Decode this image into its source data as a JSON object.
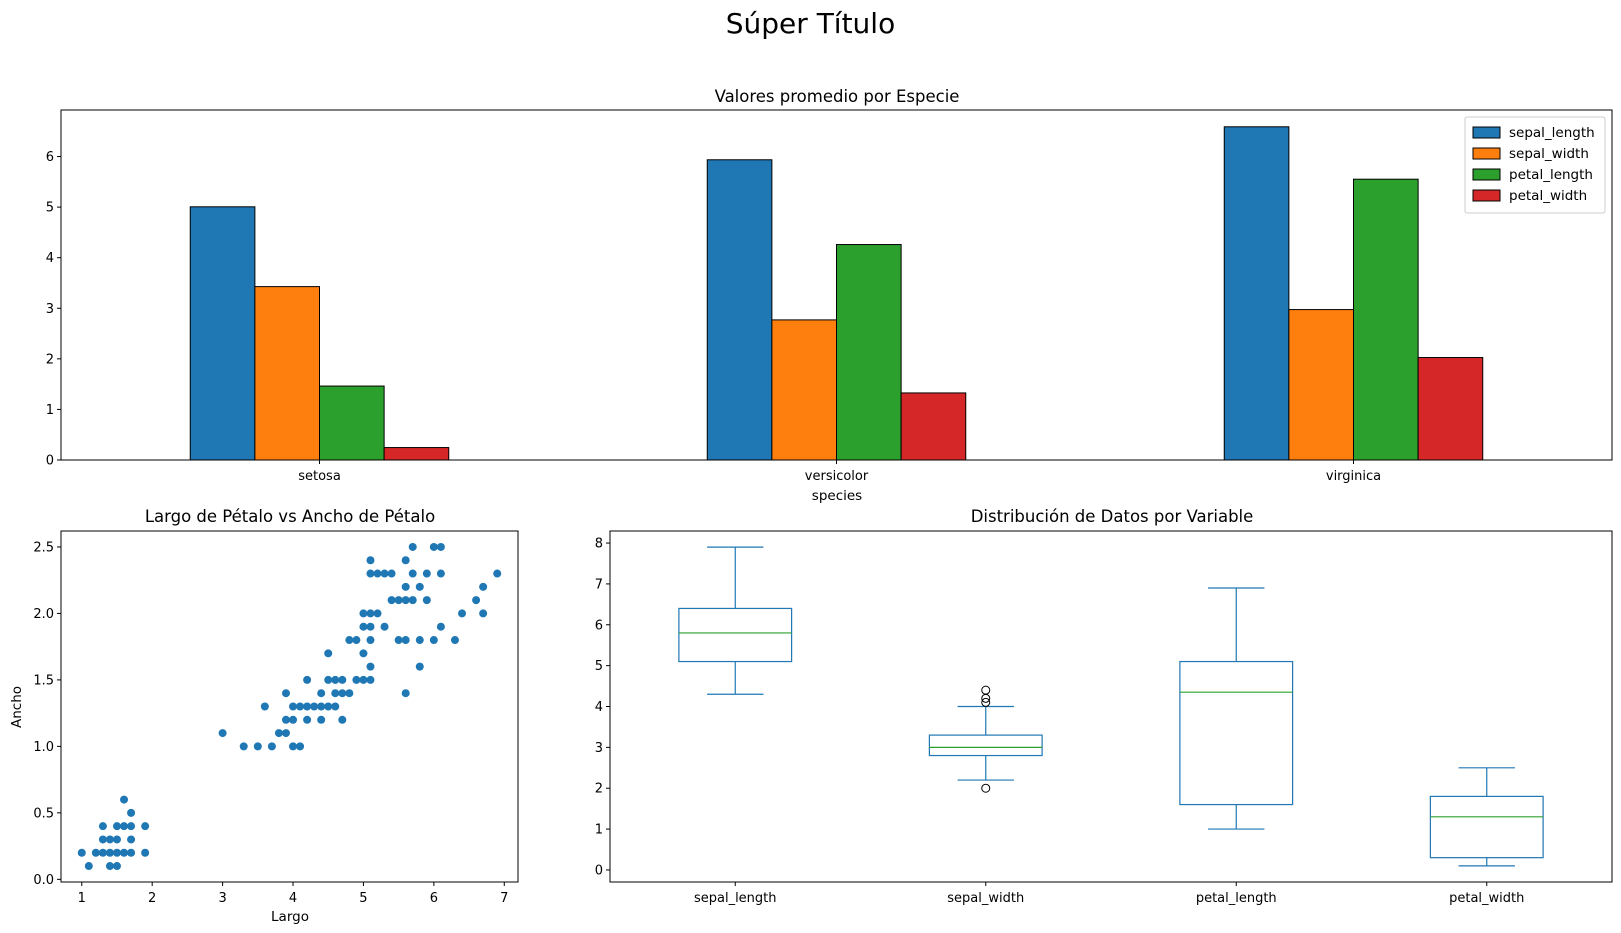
{
  "figure": {
    "suptitle": "Súper Título"
  },
  "chart_data": [
    {
      "type": "bar",
      "title": "Valores promedio por Especie",
      "xlabel": "species",
      "ylabel": "",
      "categories": [
        "setosa",
        "versicolor",
        "virginica"
      ],
      "series": [
        {
          "name": "sepal_length",
          "color": "#1f77b4",
          "values": [
            5.006,
            5.936,
            6.588
          ]
        },
        {
          "name": "sepal_width",
          "color": "#ff7f0e",
          "values": [
            3.428,
            2.77,
            2.974
          ]
        },
        {
          "name": "petal_length",
          "color": "#2ca02c",
          "values": [
            1.462,
            4.26,
            5.552
          ]
        },
        {
          "name": "petal_width",
          "color": "#d62728",
          "values": [
            0.246,
            1.326,
            2.026
          ]
        }
      ],
      "ylim": [
        0,
        6.92
      ],
      "yticks": [
        0,
        1,
        2,
        3,
        4,
        5,
        6
      ],
      "legend": "top-right",
      "grid": false
    },
    {
      "type": "scatter",
      "title": "Largo de Pétalo vs Ancho de Pétalo",
      "xlabel": "Largo",
      "ylabel": "Ancho",
      "color": "#1f77b4",
      "xlim": [
        0.705,
        7.195
      ],
      "ylim": [
        -0.02,
        2.62
      ],
      "xticks": [
        1,
        2,
        3,
        4,
        5,
        6,
        7
      ],
      "yticks": [
        "0.0",
        "0.5",
        "1.0",
        "1.5",
        "2.0",
        "2.5"
      ],
      "points": [
        [
          1.0,
          0.2
        ],
        [
          1.1,
          0.1
        ],
        [
          1.2,
          0.2
        ],
        [
          1.3,
          0.2
        ],
        [
          1.3,
          0.3
        ],
        [
          1.3,
          0.4
        ],
        [
          1.4,
          0.1
        ],
        [
          1.4,
          0.2
        ],
        [
          1.4,
          0.3
        ],
        [
          1.5,
          0.1
        ],
        [
          1.5,
          0.2
        ],
        [
          1.5,
          0.3
        ],
        [
          1.5,
          0.4
        ],
        [
          1.6,
          0.2
        ],
        [
          1.6,
          0.4
        ],
        [
          1.6,
          0.6
        ],
        [
          1.7,
          0.2
        ],
        [
          1.7,
          0.3
        ],
        [
          1.7,
          0.4
        ],
        [
          1.7,
          0.5
        ],
        [
          1.9,
          0.2
        ],
        [
          1.9,
          0.4
        ],
        [
          3.0,
          1.1
        ],
        [
          3.3,
          1.0
        ],
        [
          3.5,
          1.0
        ],
        [
          3.6,
          1.3
        ],
        [
          3.7,
          1.0
        ],
        [
          3.8,
          1.1
        ],
        [
          3.9,
          1.1
        ],
        [
          3.9,
          1.2
        ],
        [
          3.9,
          1.4
        ],
        [
          4.0,
          1.0
        ],
        [
          4.0,
          1.2
        ],
        [
          4.0,
          1.3
        ],
        [
          4.1,
          1.0
        ],
        [
          4.1,
          1.3
        ],
        [
          4.2,
          1.2
        ],
        [
          4.2,
          1.3
        ],
        [
          4.2,
          1.5
        ],
        [
          4.3,
          1.3
        ],
        [
          4.4,
          1.2
        ],
        [
          4.4,
          1.3
        ],
        [
          4.4,
          1.4
        ],
        [
          4.5,
          1.3
        ],
        [
          4.5,
          1.5
        ],
        [
          4.5,
          1.7
        ],
        [
          4.6,
          1.3
        ],
        [
          4.6,
          1.4
        ],
        [
          4.6,
          1.5
        ],
        [
          4.7,
          1.2
        ],
        [
          4.7,
          1.4
        ],
        [
          4.7,
          1.5
        ],
        [
          4.8,
          1.4
        ],
        [
          4.8,
          1.8
        ],
        [
          4.9,
          1.5
        ],
        [
          4.9,
          1.8
        ],
        [
          5.0,
          1.5
        ],
        [
          5.0,
          1.7
        ],
        [
          5.0,
          1.9
        ],
        [
          5.0,
          2.0
        ],
        [
          5.1,
          1.5
        ],
        [
          5.1,
          1.6
        ],
        [
          5.1,
          1.8
        ],
        [
          5.1,
          1.9
        ],
        [
          5.1,
          2.0
        ],
        [
          5.1,
          2.3
        ],
        [
          5.1,
          2.4
        ],
        [
          5.2,
          2.0
        ],
        [
          5.2,
          2.3
        ],
        [
          5.3,
          1.9
        ],
        [
          5.3,
          2.3
        ],
        [
          5.4,
          2.1
        ],
        [
          5.4,
          2.3
        ],
        [
          5.5,
          1.8
        ],
        [
          5.5,
          2.1
        ],
        [
          5.6,
          1.4
        ],
        [
          5.6,
          1.8
        ],
        [
          5.6,
          2.1
        ],
        [
          5.6,
          2.2
        ],
        [
          5.6,
          2.4
        ],
        [
          5.7,
          2.1
        ],
        [
          5.7,
          2.3
        ],
        [
          5.7,
          2.5
        ],
        [
          5.8,
          1.6
        ],
        [
          5.8,
          1.8
        ],
        [
          5.8,
          2.2
        ],
        [
          5.9,
          2.1
        ],
        [
          5.9,
          2.3
        ],
        [
          6.0,
          1.8
        ],
        [
          6.0,
          2.5
        ],
        [
          6.1,
          1.9
        ],
        [
          6.1,
          2.3
        ],
        [
          6.1,
          2.5
        ],
        [
          6.3,
          1.8
        ],
        [
          6.4,
          2.0
        ],
        [
          6.6,
          2.1
        ],
        [
          6.7,
          2.0
        ],
        [
          6.7,
          2.2
        ],
        [
          6.9,
          2.3
        ]
      ]
    },
    {
      "type": "box",
      "title": "Distribución de Datos por Variable",
      "categories": [
        "sepal_length",
        "sepal_width",
        "petal_length",
        "petal_width"
      ],
      "box_color": "#1f77b4",
      "median_color": "#2ca02c",
      "ylim": [
        -0.295,
        8.295
      ],
      "yticks": [
        0,
        1,
        2,
        3,
        4,
        5,
        6,
        7,
        8
      ],
      "boxes": [
        {
          "whislo": 4.3,
          "q1": 5.1,
          "med": 5.8,
          "q3": 6.4,
          "whishi": 7.9,
          "fliers": []
        },
        {
          "whislo": 2.2,
          "q1": 2.8,
          "med": 3.0,
          "q3": 3.3,
          "whishi": 4.0,
          "fliers": [
            4.4,
            4.1,
            4.2,
            2.0
          ]
        },
        {
          "whislo": 1.0,
          "q1": 1.6,
          "med": 4.35,
          "q3": 5.1,
          "whishi": 6.9,
          "fliers": []
        },
        {
          "whislo": 0.1,
          "q1": 0.3,
          "med": 1.3,
          "q3": 1.8,
          "whishi": 2.5,
          "fliers": []
        }
      ]
    }
  ]
}
